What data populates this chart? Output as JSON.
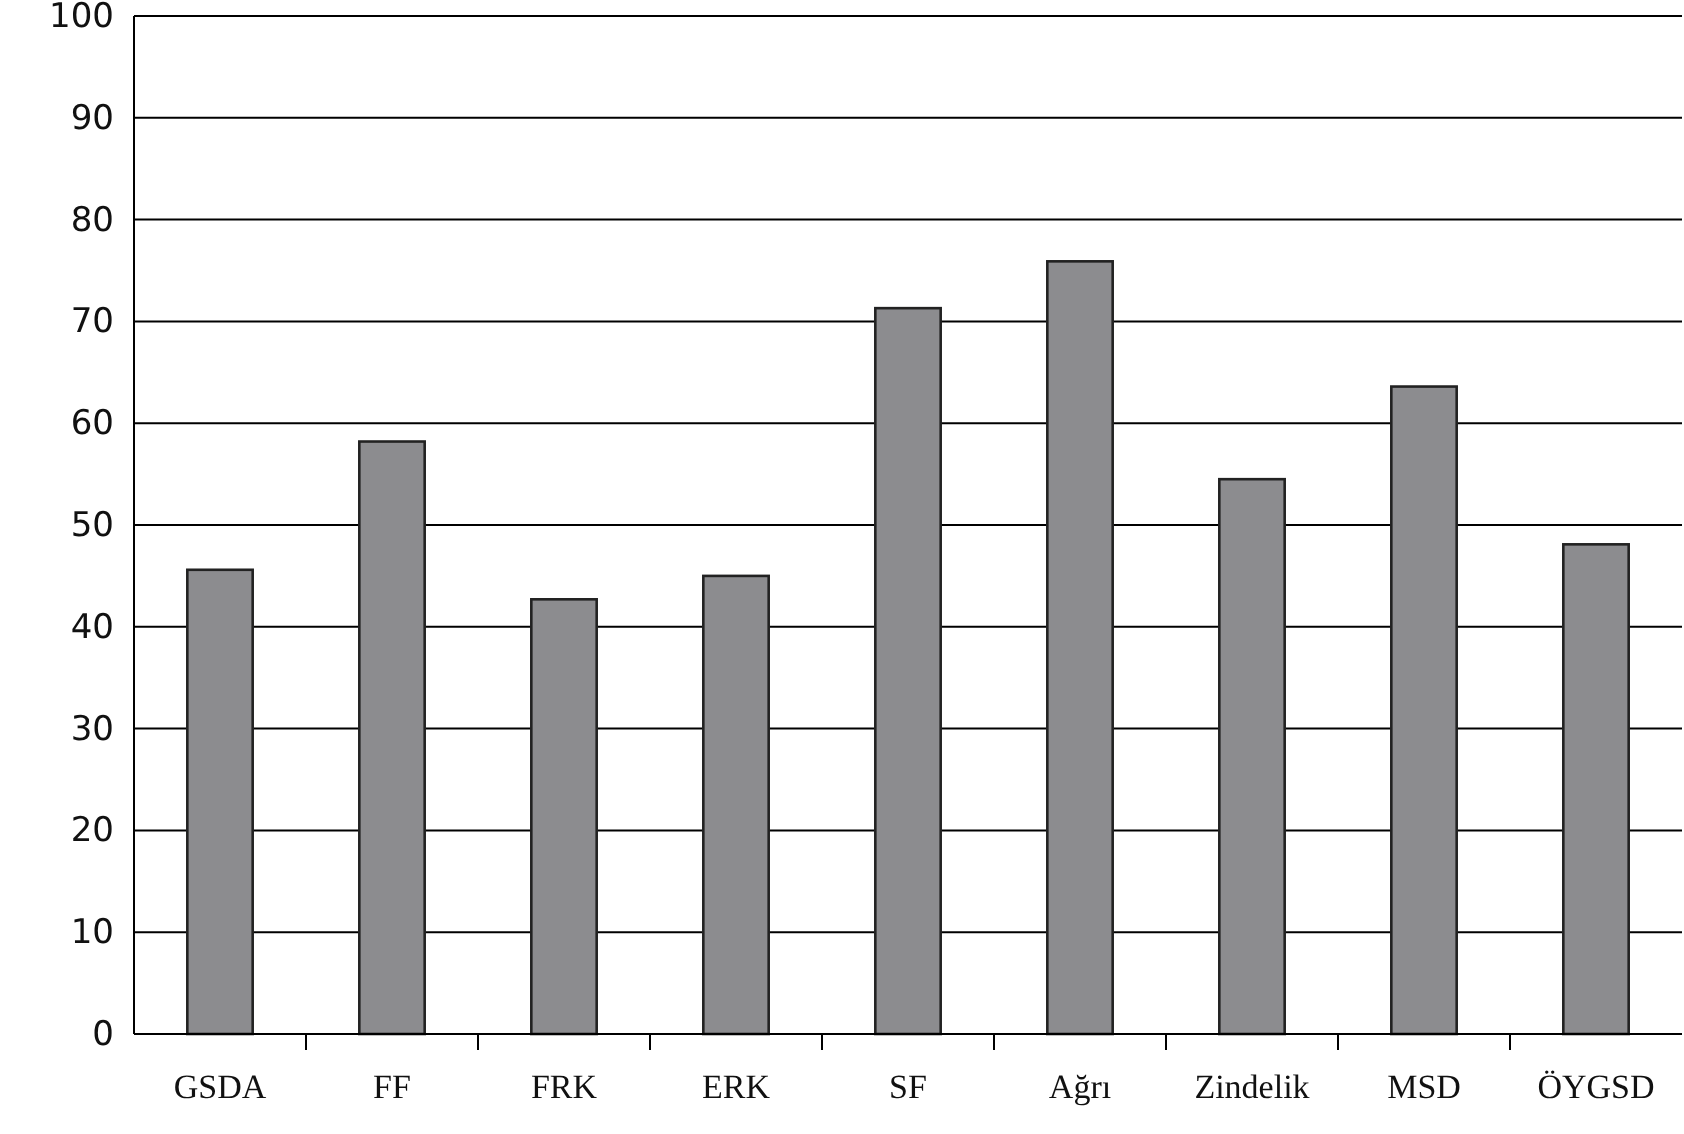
{
  "chart_data": {
    "type": "bar",
    "categories": [
      "GSDA",
      "FF",
      "FRK",
      "ERK",
      "SF",
      "Ağrı",
      "Zindelik",
      "MSD",
      "ÖYGSD"
    ],
    "values": [
      45.6,
      58.2,
      42.7,
      45,
      71.3,
      75.9,
      54.5,
      63.6,
      48.1
    ],
    "color": "#8c8c8f",
    "ylim": [
      0,
      100
    ],
    "yticks": [
      0,
      10,
      20,
      30,
      40,
      50,
      60,
      70,
      80,
      90,
      100
    ],
    "grid": "y"
  }
}
